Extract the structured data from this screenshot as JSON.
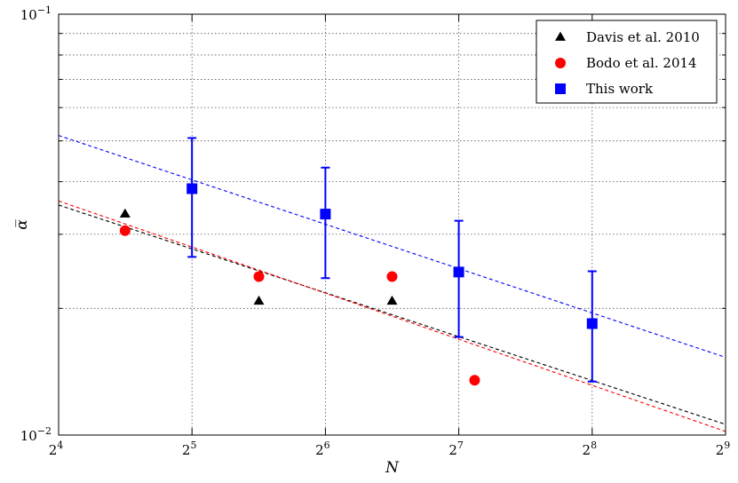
{
  "chart_data": {
    "type": "scatter",
    "xlabel": "N",
    "ylabel": "α̅",
    "x_scale": "log2",
    "y_scale": "log10",
    "xlim": [
      16,
      512
    ],
    "ylim": [
      0.01,
      0.1
    ],
    "x_ticks": [
      16,
      32,
      64,
      128,
      256,
      512
    ],
    "x_tick_labels": [
      [
        "2",
        "4"
      ],
      [
        "2",
        "5"
      ],
      [
        "2",
        "6"
      ],
      [
        "2",
        "7"
      ],
      [
        "2",
        "8"
      ],
      [
        "2",
        "9"
      ]
    ],
    "y_major_ticks": [
      0.01,
      0.1
    ],
    "y_tick_labels": [
      [
        "10",
        "−2"
      ],
      [
        "10",
        "−1"
      ]
    ],
    "grid": true,
    "legend_position": "top-right",
    "series": [
      {
        "name": "Davis et al. 2010",
        "marker": "triangle",
        "color": "#000000",
        "x": [
          22.6,
          45.3,
          90.5
        ],
        "y": [
          0.0335,
          0.0208,
          0.0208
        ]
      },
      {
        "name": "Bodo et al. 2014",
        "marker": "circle",
        "color": "#ff0000",
        "x": [
          22.6,
          45.3,
          90.5,
          139
        ],
        "y": [
          0.0306,
          0.0238,
          0.0238,
          0.0135
        ]
      },
      {
        "name": "This work",
        "marker": "square",
        "color": "#0000ff",
        "x": [
          32,
          64,
          128,
          256
        ],
        "y": [
          0.0385,
          0.0335,
          0.0244,
          0.0184
        ],
        "yerr_low": [
          0.0265,
          0.0236,
          0.0171,
          0.0134
        ],
        "yerr_high": [
          0.0508,
          0.0432,
          0.0323,
          0.0245
        ]
      }
    ],
    "fit_lines": [
      {
        "color": "#000000",
        "x": [
          16,
          512
        ],
        "y": [
          0.0352,
          0.0106
        ]
      },
      {
        "color": "#ff0000",
        "x": [
          16,
          512
        ],
        "y": [
          0.036,
          0.0102
        ]
      },
      {
        "color": "#0000ff",
        "x": [
          16,
          512
        ],
        "y": [
          0.0515,
          0.0153
        ]
      }
    ]
  }
}
